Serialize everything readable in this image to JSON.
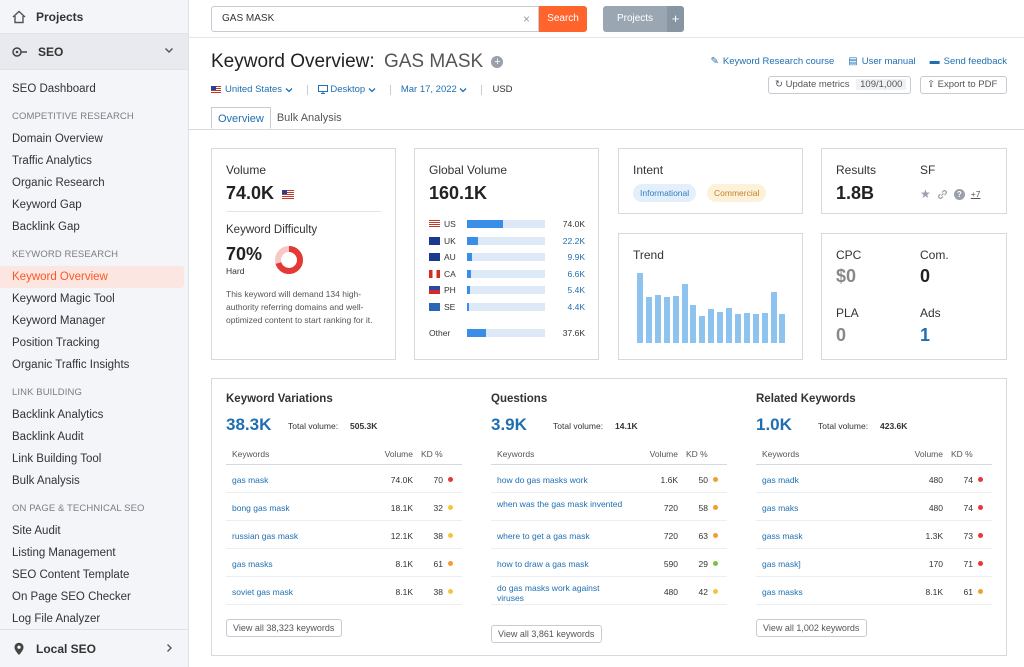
{
  "sidebar": {
    "projects_label": "Projects",
    "seo_label": "SEO",
    "dashboard": "SEO Dashboard",
    "sections": [
      {
        "title": "COMPETITIVE RESEARCH",
        "items": [
          "Domain Overview",
          "Traffic Analytics",
          "Organic Research",
          "Keyword Gap",
          "Backlink Gap"
        ]
      },
      {
        "title": "KEYWORD RESEARCH",
        "items": [
          "Keyword Overview",
          "Keyword Magic Tool",
          "Keyword Manager",
          "Position Tracking",
          "Organic Traffic Insights"
        ]
      },
      {
        "title": "LINK BUILDING",
        "items": [
          "Backlink Analytics",
          "Backlink Audit",
          "Link Building Tool",
          "Bulk Analysis"
        ]
      },
      {
        "title": "ON PAGE & TECHNICAL SEO",
        "items": [
          "Site Audit",
          "Listing Management",
          "SEO Content Template",
          "On Page SEO Checker",
          "Log File Analyzer"
        ]
      }
    ],
    "active_item": "Keyword Overview",
    "bottom_label": "Local SEO"
  },
  "topbar": {
    "search_value": "GAS MASK",
    "search_button": "Search",
    "projects_button": "Projects",
    "plus": "+"
  },
  "header": {
    "title": "Keyword Overview:",
    "keyword": "GAS MASK",
    "database": "United States",
    "device": "Desktop",
    "date": "Mar 17, 2022",
    "currency": "USD",
    "links": [
      "Keyword Research course",
      "User manual",
      "Send feedback"
    ],
    "update_label": "Update metrics",
    "update_count": "109/1,000",
    "export_label": "Export to PDF",
    "tabs": [
      "Overview",
      "Bulk Analysis"
    ]
  },
  "volume": {
    "label": "Volume",
    "value": "74.0K",
    "kd_label": "Keyword Difficulty",
    "kd_value": "70%",
    "kd_percent": 70,
    "kd_level": "Hard",
    "kd_desc": "This keyword will demand 134 high-authority referring domains and well-optimized content to start ranking for it."
  },
  "global_volume": {
    "label": "Global Volume",
    "value": "160.1K",
    "rows": [
      {
        "code": "US",
        "value": "74.0K",
        "share": 0.46,
        "flag": "us"
      },
      {
        "code": "UK",
        "value": "22.2K",
        "share": 0.14,
        "flag": "uk"
      },
      {
        "code": "AU",
        "value": "9.9K",
        "share": 0.07,
        "flag": "au"
      },
      {
        "code": "CA",
        "value": "6.6K",
        "share": 0.05,
        "flag": "ca"
      },
      {
        "code": "PH",
        "value": "5.4K",
        "share": 0.04,
        "flag": "ph"
      },
      {
        "code": "SE",
        "value": "4.4K",
        "share": 0.03,
        "flag": "se"
      }
    ],
    "other_label": "Other",
    "other_value": "37.6K",
    "other_share": 0.24
  },
  "intent": {
    "label": "Intent",
    "tags": [
      "Informational",
      "Commercial"
    ]
  },
  "results": {
    "label": "Results",
    "value": "1.8B",
    "sf_label": "SF",
    "sf_more": "+7"
  },
  "trend": {
    "label": "Trend",
    "values": [
      0.87,
      0.57,
      0.6,
      0.57,
      0.59,
      0.74,
      0.47,
      0.34,
      0.42,
      0.39,
      0.44,
      0.36,
      0.37,
      0.36,
      0.37,
      0.64,
      0.36
    ]
  },
  "cpc": {
    "cpc_label": "CPC",
    "cpc_value": "$0",
    "com_label": "Com.",
    "com_value": "0",
    "pla_label": "PLA",
    "pla_value": "0",
    "ads_label": "Ads",
    "ads_value": "1"
  },
  "keyword_variations": {
    "title": "Keyword Variations",
    "count": "38.3K",
    "total_label": "Total volume:",
    "total_value": "505.3K",
    "headers": [
      "Keywords",
      "Volume",
      "KD %"
    ],
    "rows": [
      {
        "kw": "gas mask",
        "vol": "74.0K",
        "kd": "70",
        "dot": "#e53935"
      },
      {
        "kw": "bong gas mask",
        "vol": "18.1K",
        "kd": "32",
        "dot": "#f6c343"
      },
      {
        "kw": "russian gas mask",
        "vol": "12.1K",
        "kd": "38",
        "dot": "#f6c343"
      },
      {
        "kw": "gas masks",
        "vol": "8.1K",
        "kd": "61",
        "dot": "#f39c34"
      },
      {
        "kw": "soviet gas mask",
        "vol": "8.1K",
        "kd": "38",
        "dot": "#f6c343"
      }
    ],
    "view_all": "View all 38,323 keywords"
  },
  "questions": {
    "title": "Questions",
    "count": "3.9K",
    "total_label": "Total volume:",
    "total_value": "14.1K",
    "headers": [
      "Keywords",
      "Volume",
      "KD %"
    ],
    "rows": [
      {
        "kw": "how do gas masks work",
        "vol": "1.6K",
        "kd": "50",
        "dot": "#f39c34"
      },
      {
        "kw": "when was the gas mask invented",
        "vol": "720",
        "kd": "58",
        "dot": "#f39c34"
      },
      {
        "kw": "where to get a gas mask",
        "vol": "720",
        "kd": "63",
        "dot": "#f39c34"
      },
      {
        "kw": "how to draw a gas mask",
        "vol": "590",
        "kd": "29",
        "dot": "#7cc04a"
      },
      {
        "kw": "do gas masks work against viruses",
        "vol": "480",
        "kd": "42",
        "dot": "#f6c343"
      }
    ],
    "view_all": "View all 3,861 keywords"
  },
  "related": {
    "title": "Related Keywords",
    "count": "1.0K",
    "total_label": "Total volume:",
    "total_value": "423.6K",
    "headers": [
      "Keywords",
      "Volume",
      "KD %"
    ],
    "rows": [
      {
        "kw": "gas madk",
        "vol": "480",
        "kd": "74",
        "dot": "#e53935"
      },
      {
        "kw": "gas maks",
        "vol": "480",
        "kd": "74",
        "dot": "#e53935"
      },
      {
        "kw": "gass mask",
        "vol": "1.3K",
        "kd": "73",
        "dot": "#e53935"
      },
      {
        "kw": "gas mask]",
        "vol": "170",
        "kd": "71",
        "dot": "#e53935"
      },
      {
        "kw": "gas masks",
        "vol": "8.1K",
        "kd": "61",
        "dot": "#f39c34"
      }
    ],
    "view_all": "View all 1,002 keywords"
  }
}
